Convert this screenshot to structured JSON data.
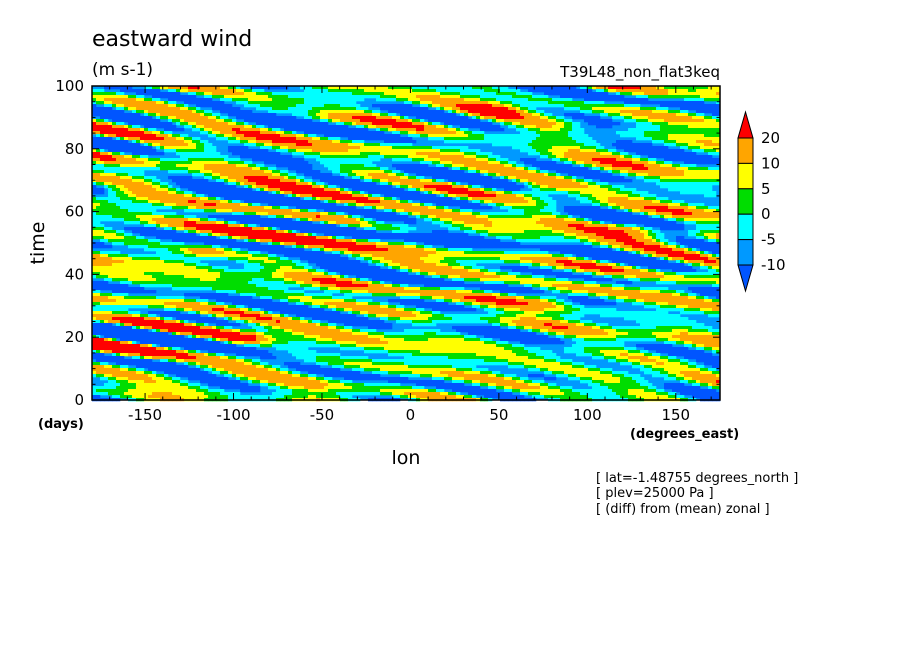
{
  "chart_data": {
    "type": "heatmap",
    "title": "eastward wind",
    "units": "(m s-1)",
    "run_label": "T39L48_non_flat3keq",
    "xlabel": "lon",
    "x_unit_label": "(degrees_east)",
    "ylabel": "time",
    "y_unit_label": "(days)",
    "xlim": [
      -180,
      175
    ],
    "ylim": [
      0,
      100
    ],
    "x_ticks": [
      "-150",
      "-100",
      "-50",
      "0",
      "50",
      "100",
      "150"
    ],
    "x_tick_values": [
      -150,
      -100,
      -50,
      0,
      50,
      100,
      150
    ],
    "y_ticks": [
      "0",
      "20",
      "40",
      "60",
      "80",
      "100"
    ],
    "y_tick_values": [
      0,
      20,
      40,
      60,
      80,
      100
    ],
    "notes": [
      "[ lat=-1.48755 degrees_north ]",
      "[ plev=25000 Pa ]",
      "[ (diff) from (mean) zonal ]"
    ],
    "colorbar": {
      "labels": [
        "20",
        "10",
        "5",
        "0",
        "-5",
        "-10"
      ],
      "levels": [
        -10,
        -5,
        0,
        5,
        10,
        20
      ],
      "colors": [
        "#0055ff",
        "#0099ff",
        "#00ffff",
        "#00dd00",
        "#ffff00",
        "#ffa500",
        "#ff0000"
      ],
      "extend": "both"
    },
    "features": [
      {
        "lon": -118,
        "time": 47,
        "value": 22
      },
      {
        "lon": 72,
        "time": 67,
        "value": 21
      },
      {
        "lon": 80,
        "time": 33,
        "value": 21
      },
      {
        "lon": 45,
        "time": 92,
        "value": 20
      },
      {
        "lon": -95,
        "time": 20,
        "value": 20
      },
      {
        "lon": 130,
        "time": 55,
        "value": 20
      },
      {
        "lon": -20,
        "time": 57,
        "value": -14
      },
      {
        "lon": 20,
        "time": 50,
        "value": -14
      },
      {
        "lon": -60,
        "time": 92,
        "value": -13
      },
      {
        "lon": 100,
        "time": 86,
        "value": -12
      },
      {
        "lon": -130,
        "time": 12,
        "value": -11
      },
      {
        "lon": 0,
        "time": 70,
        "value": -12
      },
      {
        "lon": 150,
        "time": 35,
        "value": 12
      },
      {
        "lon": -160,
        "time": 66,
        "value": 13
      },
      {
        "lon": -140,
        "time": 80,
        "value": 14
      }
    ]
  }
}
